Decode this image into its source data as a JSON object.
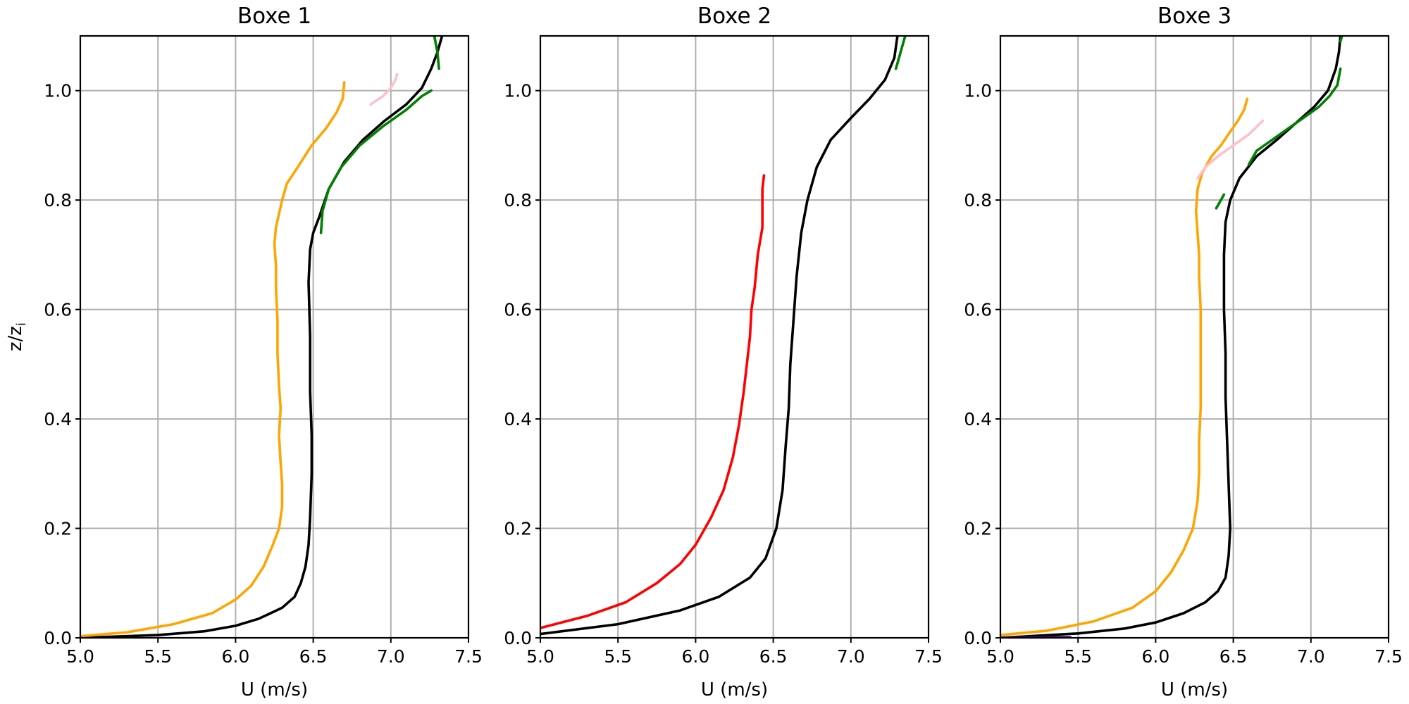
{
  "chart_data": [
    {
      "type": "line",
      "title": "Boxe 1",
      "xlabel": "U (m/s)",
      "ylabel": "z/z_i",
      "xlim": [
        5.0,
        7.5
      ],
      "ylim": [
        0.0,
        1.1
      ],
      "xticks": [
        "5.0",
        "5.5",
        "6.0",
        "6.5",
        "7.0",
        "7.5"
      ],
      "yticks": [
        "0.0",
        "0.2",
        "0.4",
        "0.6",
        "0.8",
        "1.0"
      ],
      "grid": true,
      "series": [
        {
          "color": "#000000",
          "points": [
            [
              5.0,
              0.0
            ],
            [
              5.5,
              0.005
            ],
            [
              5.8,
              0.012
            ],
            [
              6.0,
              0.022
            ],
            [
              6.15,
              0.035
            ],
            [
              6.3,
              0.055
            ],
            [
              6.38,
              0.075
            ],
            [
              6.42,
              0.1
            ],
            [
              6.45,
              0.13
            ],
            [
              6.47,
              0.17
            ],
            [
              6.48,
              0.22
            ],
            [
              6.49,
              0.3
            ],
            [
              6.49,
              0.37
            ],
            [
              6.48,
              0.45
            ],
            [
              6.48,
              0.55
            ],
            [
              6.47,
              0.65
            ],
            [
              6.48,
              0.71
            ],
            [
              6.5,
              0.74
            ],
            [
              6.54,
              0.77
            ],
            [
              6.6,
              0.82
            ],
            [
              6.7,
              0.87
            ],
            [
              6.82,
              0.91
            ],
            [
              6.96,
              0.945
            ],
            [
              7.1,
              0.975
            ],
            [
              7.2,
              1.005
            ],
            [
              7.26,
              1.04
            ],
            [
              7.3,
              1.07
            ],
            [
              7.33,
              1.1
            ]
          ]
        },
        {
          "color": "#ffa500",
          "points": [
            [
              5.0,
              0.003
            ],
            [
              5.3,
              0.01
            ],
            [
              5.6,
              0.025
            ],
            [
              5.85,
              0.045
            ],
            [
              6.0,
              0.07
            ],
            [
              6.1,
              0.095
            ],
            [
              6.18,
              0.13
            ],
            [
              6.24,
              0.17
            ],
            [
              6.28,
              0.2
            ],
            [
              6.3,
              0.24
            ],
            [
              6.3,
              0.28
            ],
            [
              6.29,
              0.32
            ],
            [
              6.28,
              0.37
            ],
            [
              6.29,
              0.42
            ],
            [
              6.28,
              0.46
            ],
            [
              6.27,
              0.52
            ],
            [
              6.27,
              0.58
            ],
            [
              6.26,
              0.64
            ],
            [
              6.26,
              0.68
            ],
            [
              6.25,
              0.72
            ],
            [
              6.26,
              0.75
            ],
            [
              6.3,
              0.8
            ],
            [
              6.33,
              0.83
            ],
            [
              6.4,
              0.86
            ],
            [
              6.49,
              0.9
            ],
            [
              6.58,
              0.93
            ],
            [
              6.65,
              0.96
            ],
            [
              6.69,
              0.985
            ],
            [
              6.7,
              1.015
            ]
          ]
        },
        {
          "color": "#ffc0cb",
          "points": [
            [
              6.87,
              0.975
            ],
            [
              6.95,
              0.99
            ],
            [
              7.0,
              1.005
            ],
            [
              7.03,
              1.02
            ],
            [
              7.04,
              1.03
            ]
          ]
        },
        {
          "color": "#008000",
          "points": [
            [
              6.55,
              0.74
            ],
            [
              6.56,
              0.78
            ],
            [
              6.6,
              0.82
            ],
            [
              6.68,
              0.86
            ],
            [
              6.8,
              0.9
            ],
            [
              6.95,
              0.935
            ],
            [
              7.1,
              0.965
            ],
            [
              7.2,
              0.99
            ],
            [
              7.26,
              1.0
            ]
          ]
        },
        {
          "color": "#008000",
          "points": [
            [
              7.28,
              1.1
            ],
            [
              7.3,
              1.07
            ],
            [
              7.31,
              1.04
            ]
          ]
        }
      ]
    },
    {
      "type": "line",
      "title": "Boxe 2",
      "xlabel": "U (m/s)",
      "ylabel": "",
      "xlim": [
        5.0,
        7.5
      ],
      "ylim": [
        0.0,
        1.1
      ],
      "xticks": [
        "5.0",
        "5.5",
        "6.0",
        "6.5",
        "7.0",
        "7.5"
      ],
      "yticks": [
        "0.0",
        "0.2",
        "0.4",
        "0.6",
        "0.8",
        "1.0"
      ],
      "grid": true,
      "series": [
        {
          "color": "#000000",
          "points": [
            [
              5.0,
              0.007
            ],
            [
              5.5,
              0.025
            ],
            [
              5.9,
              0.05
            ],
            [
              6.15,
              0.075
            ],
            [
              6.35,
              0.11
            ],
            [
              6.45,
              0.145
            ],
            [
              6.52,
              0.2
            ],
            [
              6.56,
              0.27
            ],
            [
              6.58,
              0.35
            ],
            [
              6.6,
              0.42
            ],
            [
              6.61,
              0.5
            ],
            [
              6.63,
              0.58
            ],
            [
              6.65,
              0.66
            ],
            [
              6.68,
              0.74
            ],
            [
              6.72,
              0.8
            ],
            [
              6.78,
              0.86
            ],
            [
              6.87,
              0.91
            ],
            [
              7.0,
              0.95
            ],
            [
              7.12,
              0.985
            ],
            [
              7.22,
              1.02
            ],
            [
              7.28,
              1.06
            ],
            [
              7.3,
              1.1
            ]
          ]
        },
        {
          "color": "#ff0000",
          "points": [
            [
              5.0,
              0.018
            ],
            [
              5.3,
              0.04
            ],
            [
              5.55,
              0.065
            ],
            [
              5.75,
              0.1
            ],
            [
              5.9,
              0.135
            ],
            [
              6.0,
              0.17
            ],
            [
              6.1,
              0.22
            ],
            [
              6.18,
              0.27
            ],
            [
              6.24,
              0.33
            ],
            [
              6.28,
              0.39
            ],
            [
              6.31,
              0.45
            ],
            [
              6.33,
              0.5
            ],
            [
              6.35,
              0.55
            ],
            [
              6.36,
              0.6
            ],
            [
              6.38,
              0.64
            ],
            [
              6.4,
              0.7
            ],
            [
              6.43,
              0.75
            ],
            [
              6.43,
              0.79
            ],
            [
              6.43,
              0.82
            ],
            [
              6.44,
              0.845
            ]
          ]
        },
        {
          "color": "#008000",
          "points": [
            [
              7.29,
              1.04
            ],
            [
              7.32,
              1.07
            ],
            [
              7.35,
              1.1
            ]
          ]
        }
      ]
    },
    {
      "type": "line",
      "title": "Boxe 3",
      "xlabel": "U (m/s)",
      "ylabel": "",
      "xlim": [
        5.0,
        7.5
      ],
      "ylim": [
        0.0,
        1.1
      ],
      "xticks": [
        "5.0",
        "5.5",
        "6.0",
        "6.5",
        "7.0",
        "7.5"
      ],
      "yticks": [
        "0.0",
        "0.2",
        "0.4",
        "0.6",
        "0.8",
        "1.0"
      ],
      "grid": true,
      "series": [
        {
          "color": "#000000",
          "points": [
            [
              5.0,
              0.0
            ],
            [
              5.5,
              0.008
            ],
            [
              5.8,
              0.017
            ],
            [
              6.0,
              0.028
            ],
            [
              6.18,
              0.045
            ],
            [
              6.32,
              0.065
            ],
            [
              6.4,
              0.085
            ],
            [
              6.45,
              0.11
            ],
            [
              6.47,
              0.15
            ],
            [
              6.48,
              0.2
            ],
            [
              6.47,
              0.28
            ],
            [
              6.46,
              0.36
            ],
            [
              6.45,
              0.44
            ],
            [
              6.45,
              0.52
            ],
            [
              6.44,
              0.6
            ],
            [
              6.44,
              0.7
            ],
            [
              6.45,
              0.76
            ],
            [
              6.48,
              0.8
            ],
            [
              6.54,
              0.84
            ],
            [
              6.65,
              0.88
            ],
            [
              6.78,
              0.91
            ],
            [
              6.9,
              0.94
            ],
            [
              7.02,
              0.97
            ],
            [
              7.11,
              1.0
            ],
            [
              7.16,
              1.04
            ],
            [
              7.18,
              1.07
            ],
            [
              7.19,
              1.1
            ]
          ]
        },
        {
          "color": "#ffa500",
          "points": [
            [
              5.0,
              0.005
            ],
            [
              5.3,
              0.013
            ],
            [
              5.6,
              0.03
            ],
            [
              5.85,
              0.055
            ],
            [
              6.0,
              0.085
            ],
            [
              6.1,
              0.12
            ],
            [
              6.18,
              0.16
            ],
            [
              6.24,
              0.2
            ],
            [
              6.27,
              0.25
            ],
            [
              6.28,
              0.3
            ],
            [
              6.28,
              0.36
            ],
            [
              6.29,
              0.42
            ],
            [
              6.29,
              0.48
            ],
            [
              6.29,
              0.54
            ],
            [
              6.29,
              0.6
            ],
            [
              6.28,
              0.66
            ],
            [
              6.28,
              0.7
            ],
            [
              6.27,
              0.74
            ],
            [
              6.26,
              0.78
            ],
            [
              6.27,
              0.82
            ],
            [
              6.3,
              0.85
            ],
            [
              6.36,
              0.88
            ],
            [
              6.42,
              0.9
            ],
            [
              6.48,
              0.925
            ],
            [
              6.53,
              0.945
            ],
            [
              6.57,
              0.965
            ],
            [
              6.59,
              0.985
            ]
          ]
        },
        {
          "color": "#ffc0cb",
          "points": [
            [
              6.27,
              0.84
            ],
            [
              6.32,
              0.86
            ],
            [
              6.4,
              0.88
            ],
            [
              6.5,
              0.9
            ],
            [
              6.6,
              0.92
            ],
            [
              6.69,
              0.945
            ]
          ]
        },
        {
          "color": "#008000",
          "points": [
            [
              6.39,
              0.785
            ],
            [
              6.41,
              0.795
            ],
            [
              6.44,
              0.81
            ]
          ]
        },
        {
          "color": "#008000",
          "points": [
            [
              6.6,
              0.865
            ],
            [
              6.65,
              0.89
            ],
            [
              6.75,
              0.91
            ],
            [
              6.85,
              0.93
            ],
            [
              6.95,
              0.95
            ],
            [
              7.05,
              0.97
            ],
            [
              7.12,
              0.99
            ],
            [
              7.17,
              1.01
            ],
            [
              7.19,
              1.04
            ]
          ]
        },
        {
          "color": "#008000",
          "points": [
            [
              7.19,
              1.09
            ],
            [
              7.2,
              1.1
            ]
          ]
        },
        {
          "color": "#4b0082",
          "points": [
            [
              5.0,
              0.0
            ],
            [
              5.3,
              0.001
            ],
            [
              5.45,
              0.001
            ]
          ]
        }
      ]
    }
  ]
}
